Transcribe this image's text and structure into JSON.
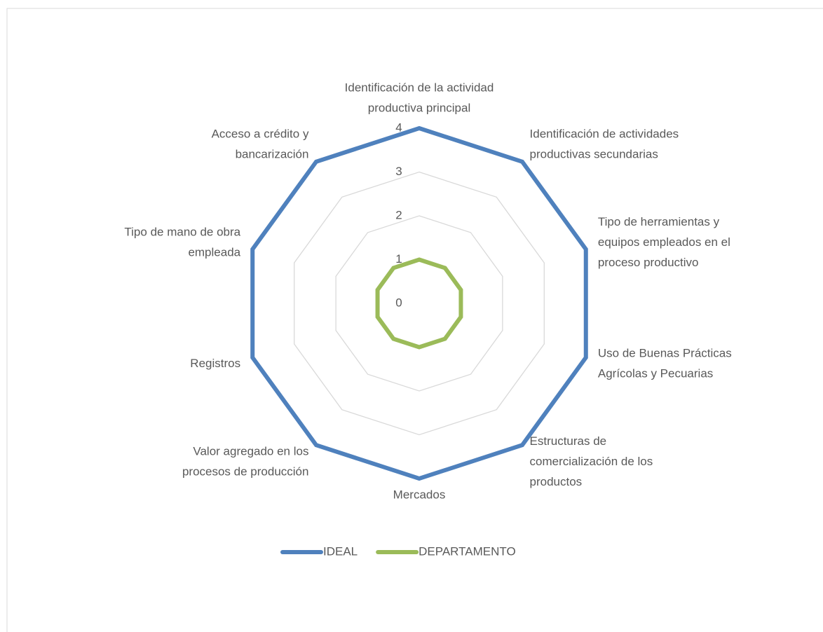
{
  "chart_data": {
    "type": "radar",
    "categories": [
      [
        "Identificación de la actividad",
        "productiva principal"
      ],
      [
        "Identificación de actividades",
        "productivas secundarias"
      ],
      [
        "Tipo de herramientas y",
        "equipos empleados en el",
        "proceso productivo"
      ],
      [
        "Uso de Buenas Prácticas",
        "Agrícolas y Pecuarias"
      ],
      [
        "Estructuras de",
        "comercialización de los",
        "productos"
      ],
      [
        "Mercados"
      ],
      [
        "Valor agregado en los",
        "procesos de producción"
      ],
      [
        "Registros"
      ],
      [
        "Tipo de mano de obra",
        "empleada"
      ],
      [
        "Acceso a crédito y",
        "bancarización"
      ]
    ],
    "series": [
      {
        "name": "IDEAL",
        "color": "#4f81bd",
        "values": [
          4,
          4,
          4,
          4,
          4,
          4,
          4,
          4,
          4,
          4
        ]
      },
      {
        "name": "DEPARTAMENTO",
        "color": "#9bbb59",
        "values": [
          1,
          1,
          1,
          1,
          1,
          1,
          1,
          1,
          1,
          1
        ]
      }
    ],
    "ylim": [
      0,
      4
    ],
    "yticks": [
      0,
      1,
      2,
      3,
      4
    ],
    "grid": true,
    "legend": "bottom"
  }
}
